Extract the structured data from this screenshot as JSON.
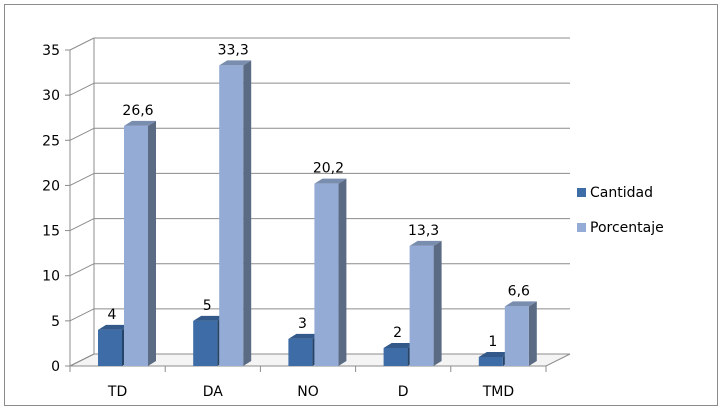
{
  "chart_data": {
    "type": "bar",
    "categories": [
      "TD",
      "DA",
      "NO",
      "D",
      "TMD"
    ],
    "series": [
      {
        "name": "Cantidad",
        "values": [
          4,
          5,
          3,
          2,
          1
        ],
        "labels": [
          "4",
          "5",
          "3",
          "2",
          "1"
        ],
        "color": "#3d6ca7"
      },
      {
        "name": "Porcentaje",
        "values": [
          26.6,
          33.3,
          20.2,
          13.3,
          6.6
        ],
        "labels": [
          "26,6",
          "33,3",
          "20,2",
          "13,3",
          "6,6"
        ],
        "color": "#94acd5"
      }
    ],
    "yticks": [
      "0",
      "5",
      "10",
      "15",
      "20",
      "25",
      "30",
      "35"
    ],
    "ylim": [
      0,
      35
    ],
    "grid": true,
    "legend_position": "right",
    "style": "3d-clustered-column"
  }
}
